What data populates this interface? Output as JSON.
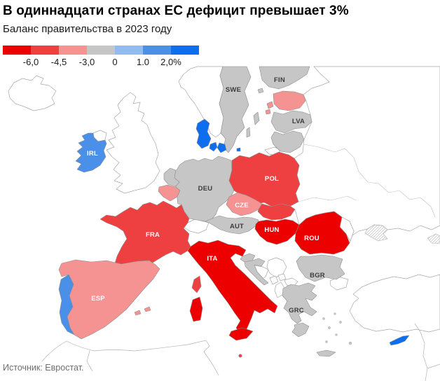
{
  "header": {
    "title": "В одиннадцати странах ЕС дефицит превышает 3%",
    "subtitle": "Баланс правительства в 2023 году"
  },
  "legend": {
    "colors": [
      "#ec0000",
      "#ee4040",
      "#f59393",
      "#c6c6c6",
      "#94bbf0",
      "#4a8fe8",
      "#0e6ef0"
    ],
    "ticks": [
      "-6,0",
      "-4,5",
      "-3,0",
      "0",
      "1.0",
      "2,0%"
    ]
  },
  "source": "Источник: Евростат.",
  "map": {
    "labels": {
      "SWE": "SWE",
      "FIN": "FIN",
      "LVA": "LVA",
      "IRL": "IRL",
      "POL": "POL",
      "DEU": "DEU",
      "CZE": "CZE",
      "AUT": "AUT",
      "HUN": "HUN",
      "ROU": "ROU",
      "FRA": "FRA",
      "ITA": "ITA",
      "ESP": "ESP",
      "BGR": "BGR",
      "GRC": "GRC"
    },
    "country_bins": {
      "ITA": 0,
      "HUN": 0,
      "ROU": 0,
      "FRA": 1,
      "POL": 1,
      "SVK": 1,
      "MLT": 1,
      "ESP": 2,
      "BEL": 2,
      "CZE": 2,
      "EST": 2,
      "DEU": 3,
      "AUT": 3,
      "NLD": 3,
      "LUX": 3,
      "SWE": 3,
      "FIN": 3,
      "LVA": 3,
      "LTU": 3,
      "HRV": 3,
      "SVN": 3,
      "BGR": 3,
      "GRC": 3,
      "IRL": 5,
      "PRT": 5,
      "DNK": 6,
      "CYP": 6
    }
  },
  "chart_data": {
    "type": "heatmap",
    "subtype": "choropleth-map-europe",
    "title": "В одиннадцати странах ЕС дефицит превышает 3%",
    "subtitle": "Баланс правительства в 2023 году",
    "source": "Источник: Евростат.",
    "legend_thresholds": [
      -6.0,
      -4.5,
      -3.0,
      0,
      1.0,
      2.0
    ],
    "legend_tick_labels": [
      "-6,0",
      "-4,5",
      "-3,0",
      "0",
      "1.0",
      "2,0%"
    ],
    "legend_position": "top-left",
    "bins": [
      {
        "range": "below -6.0",
        "color": "#ec0000"
      },
      {
        "range": "-6.0 to -4.5",
        "color": "#ee4040"
      },
      {
        "range": "-4.5 to -3.0",
        "color": "#f59393"
      },
      {
        "range": "-3.0 to 0",
        "color": "#c6c6c6"
      },
      {
        "range": "0 to 1.0",
        "color": "#94bbf0"
      },
      {
        "range": "1.0 to 2.0",
        "color": "#4a8fe8"
      },
      {
        "range": "above 2.0",
        "color": "#0e6ef0"
      }
    ],
    "countries": [
      {
        "name": "Italy",
        "label": "ITA",
        "bin": "below -6.0"
      },
      {
        "name": "Hungary",
        "label": "HUN",
        "bin": "below -6.0"
      },
      {
        "name": "Romania",
        "label": "ROU",
        "bin": "below -6.0"
      },
      {
        "name": "France",
        "label": "FRA",
        "bin": "-6.0 to -4.5"
      },
      {
        "name": "Poland",
        "label": "POL",
        "bin": "-6.0 to -4.5"
      },
      {
        "name": "Slovakia",
        "label": "",
        "bin": "-6.0 to -4.5"
      },
      {
        "name": "Malta",
        "label": "",
        "bin": "-6.0 to -4.5"
      },
      {
        "name": "Spain",
        "label": "ESP",
        "bin": "-4.5 to -3.0"
      },
      {
        "name": "Belgium",
        "label": "",
        "bin": "-4.5 to -3.0"
      },
      {
        "name": "Czechia",
        "label": "CZE",
        "bin": "-4.5 to -3.0"
      },
      {
        "name": "Estonia",
        "label": "",
        "bin": "-4.5 to -3.0"
      },
      {
        "name": "Germany",
        "label": "DEU",
        "bin": "-3.0 to 0"
      },
      {
        "name": "Austria",
        "label": "AUT",
        "bin": "-3.0 to 0"
      },
      {
        "name": "Netherlands",
        "label": "",
        "bin": "-3.0 to 0"
      },
      {
        "name": "Luxembourg",
        "label": "",
        "bin": "-3.0 to 0"
      },
      {
        "name": "Sweden",
        "label": "SWE",
        "bin": "-3.0 to 0"
      },
      {
        "name": "Finland",
        "label": "FIN",
        "bin": "-3.0 to 0"
      },
      {
        "name": "Latvia",
        "label": "LVA",
        "bin": "-3.0 to 0"
      },
      {
        "name": "Lithuania",
        "label": "",
        "bin": "-3.0 to 0"
      },
      {
        "name": "Croatia",
        "label": "",
        "bin": "-3.0 to 0"
      },
      {
        "name": "Slovenia",
        "label": "",
        "bin": "-3.0 to 0"
      },
      {
        "name": "Bulgaria",
        "label": "BGR",
        "bin": "-3.0 to 0"
      },
      {
        "name": "Greece",
        "label": "GRC",
        "bin": "-3.0 to 0"
      },
      {
        "name": "Ireland",
        "label": "IRL",
        "bin": "1.0 to 2.0"
      },
      {
        "name": "Portugal",
        "label": "",
        "bin": "1.0 to 2.0"
      },
      {
        "name": "Denmark",
        "label": "",
        "bin": "above 2.0"
      },
      {
        "name": "Cyprus",
        "label": "",
        "bin": "above 2.0"
      }
    ]
  }
}
